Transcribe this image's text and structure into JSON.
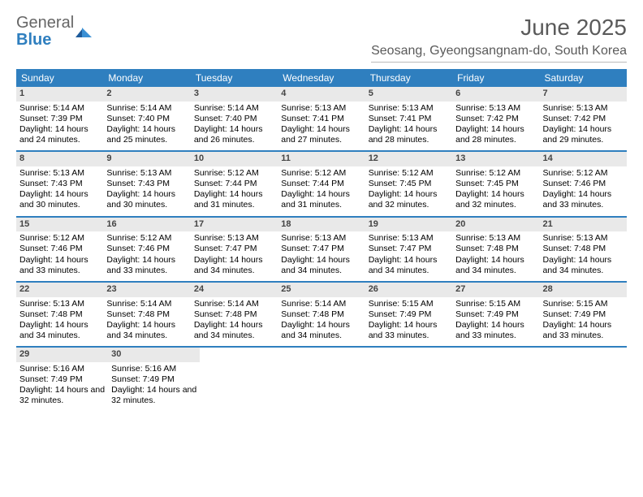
{
  "logo": {
    "part1": "General",
    "part2": "Blue"
  },
  "title": "June 2025",
  "location": "Seosang, Gyeongsangnam-do, South Korea",
  "colors": {
    "header_bg": "#2f7fbf",
    "header_text": "#ffffff",
    "daynum_bg": "#e9e9e9",
    "week_border": "#2f7fbf",
    "page_bg": "#ffffff",
    "title_color": "#5a5a5a"
  },
  "weekdays": [
    "Sunday",
    "Monday",
    "Tuesday",
    "Wednesday",
    "Thursday",
    "Friday",
    "Saturday"
  ],
  "weeks": [
    [
      {
        "n": "1",
        "sr": "5:14 AM",
        "ss": "7:39 PM",
        "dl": "14 hours and 24 minutes."
      },
      {
        "n": "2",
        "sr": "5:14 AM",
        "ss": "7:40 PM",
        "dl": "14 hours and 25 minutes."
      },
      {
        "n": "3",
        "sr": "5:14 AM",
        "ss": "7:40 PM",
        "dl": "14 hours and 26 minutes."
      },
      {
        "n": "4",
        "sr": "5:13 AM",
        "ss": "7:41 PM",
        "dl": "14 hours and 27 minutes."
      },
      {
        "n": "5",
        "sr": "5:13 AM",
        "ss": "7:41 PM",
        "dl": "14 hours and 28 minutes."
      },
      {
        "n": "6",
        "sr": "5:13 AM",
        "ss": "7:42 PM",
        "dl": "14 hours and 28 minutes."
      },
      {
        "n": "7",
        "sr": "5:13 AM",
        "ss": "7:42 PM",
        "dl": "14 hours and 29 minutes."
      }
    ],
    [
      {
        "n": "8",
        "sr": "5:13 AM",
        "ss": "7:43 PM",
        "dl": "14 hours and 30 minutes."
      },
      {
        "n": "9",
        "sr": "5:13 AM",
        "ss": "7:43 PM",
        "dl": "14 hours and 30 minutes."
      },
      {
        "n": "10",
        "sr": "5:12 AM",
        "ss": "7:44 PM",
        "dl": "14 hours and 31 minutes."
      },
      {
        "n": "11",
        "sr": "5:12 AM",
        "ss": "7:44 PM",
        "dl": "14 hours and 31 minutes."
      },
      {
        "n": "12",
        "sr": "5:12 AM",
        "ss": "7:45 PM",
        "dl": "14 hours and 32 minutes."
      },
      {
        "n": "13",
        "sr": "5:12 AM",
        "ss": "7:45 PM",
        "dl": "14 hours and 32 minutes."
      },
      {
        "n": "14",
        "sr": "5:12 AM",
        "ss": "7:46 PM",
        "dl": "14 hours and 33 minutes."
      }
    ],
    [
      {
        "n": "15",
        "sr": "5:12 AM",
        "ss": "7:46 PM",
        "dl": "14 hours and 33 minutes."
      },
      {
        "n": "16",
        "sr": "5:12 AM",
        "ss": "7:46 PM",
        "dl": "14 hours and 33 minutes."
      },
      {
        "n": "17",
        "sr": "5:13 AM",
        "ss": "7:47 PM",
        "dl": "14 hours and 34 minutes."
      },
      {
        "n": "18",
        "sr": "5:13 AM",
        "ss": "7:47 PM",
        "dl": "14 hours and 34 minutes."
      },
      {
        "n": "19",
        "sr": "5:13 AM",
        "ss": "7:47 PM",
        "dl": "14 hours and 34 minutes."
      },
      {
        "n": "20",
        "sr": "5:13 AM",
        "ss": "7:48 PM",
        "dl": "14 hours and 34 minutes."
      },
      {
        "n": "21",
        "sr": "5:13 AM",
        "ss": "7:48 PM",
        "dl": "14 hours and 34 minutes."
      }
    ],
    [
      {
        "n": "22",
        "sr": "5:13 AM",
        "ss": "7:48 PM",
        "dl": "14 hours and 34 minutes."
      },
      {
        "n": "23",
        "sr": "5:14 AM",
        "ss": "7:48 PM",
        "dl": "14 hours and 34 minutes."
      },
      {
        "n": "24",
        "sr": "5:14 AM",
        "ss": "7:48 PM",
        "dl": "14 hours and 34 minutes."
      },
      {
        "n": "25",
        "sr": "5:14 AM",
        "ss": "7:48 PM",
        "dl": "14 hours and 34 minutes."
      },
      {
        "n": "26",
        "sr": "5:15 AM",
        "ss": "7:49 PM",
        "dl": "14 hours and 33 minutes."
      },
      {
        "n": "27",
        "sr": "5:15 AM",
        "ss": "7:49 PM",
        "dl": "14 hours and 33 minutes."
      },
      {
        "n": "28",
        "sr": "5:15 AM",
        "ss": "7:49 PM",
        "dl": "14 hours and 33 minutes."
      }
    ],
    [
      {
        "n": "29",
        "sr": "5:16 AM",
        "ss": "7:49 PM",
        "dl": "14 hours and 32 minutes."
      },
      {
        "n": "30",
        "sr": "5:16 AM",
        "ss": "7:49 PM",
        "dl": "14 hours and 32 minutes."
      },
      null,
      null,
      null,
      null,
      null
    ]
  ],
  "labels": {
    "sunrise": "Sunrise:",
    "sunset": "Sunset:",
    "daylight": "Daylight:"
  }
}
